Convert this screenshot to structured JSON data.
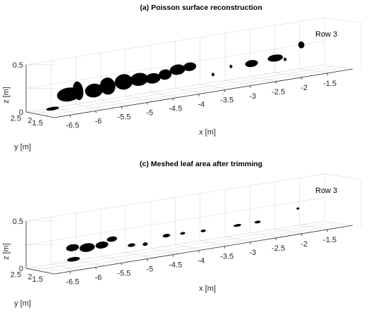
{
  "chart_data": [
    {
      "type": "scatter",
      "title": "(a) Poisson surface reconstruction",
      "annotation": "Row 3",
      "xlabel": "x [m]",
      "ylabel": "y [m]",
      "zlabel": "z [m]",
      "xlim": [
        -6.8,
        -1.0
      ],
      "ylim": [
        1.3,
        2.6
      ],
      "zlim": [
        0,
        0.5
      ],
      "xticks": [
        "-6.5",
        "-6",
        "-5.5",
        "-5",
        "-4.5",
        "-4",
        "-3.5",
        "-3",
        "-2.5",
        "-2",
        "-1.5"
      ],
      "yticks": [
        "1.5",
        "2",
        "2.5"
      ],
      "zticks": [
        "0",
        "0.5"
      ],
      "grid": true,
      "point_color": "#000000",
      "points": [
        {
          "x": -6.6,
          "y": 2.0,
          "z": 0.05,
          "w": 0.25,
          "h": 0.04
        },
        {
          "x": -6.3,
          "y": 2.1,
          "z": 0.18,
          "w": 0.45,
          "h": 0.16
        },
        {
          "x": -6.05,
          "y": 2.1,
          "z": 0.2,
          "w": 0.2,
          "h": 0.22
        },
        {
          "x": -5.8,
          "y": 2.05,
          "z": 0.18,
          "w": 0.35,
          "h": 0.16
        },
        {
          "x": -5.5,
          "y": 2.1,
          "z": 0.2,
          "w": 0.3,
          "h": 0.2
        },
        {
          "x": -5.2,
          "y": 2.1,
          "z": 0.22,
          "w": 0.35,
          "h": 0.18
        },
        {
          "x": -4.9,
          "y": 2.1,
          "z": 0.22,
          "w": 0.35,
          "h": 0.15
        },
        {
          "x": -4.6,
          "y": 2.15,
          "z": 0.2,
          "w": 0.3,
          "h": 0.12
        },
        {
          "x": -4.35,
          "y": 2.15,
          "z": 0.22,
          "w": 0.25,
          "h": 0.12
        },
        {
          "x": -4.1,
          "y": 2.2,
          "z": 0.25,
          "w": 0.3,
          "h": 0.12
        },
        {
          "x": -3.85,
          "y": 2.2,
          "z": 0.26,
          "w": 0.25,
          "h": 0.1
        },
        {
          "x": -3.35,
          "y": 2.2,
          "z": 0.12,
          "w": 0.05,
          "h": 0.04
        },
        {
          "x": -3.0,
          "y": 2.2,
          "z": 0.18,
          "w": 0.05,
          "h": 0.04
        },
        {
          "x": -2.65,
          "y": 2.2,
          "z": 0.18,
          "w": 0.25,
          "h": 0.08
        },
        {
          "x": -2.2,
          "y": 2.2,
          "z": 0.2,
          "w": 0.3,
          "h": 0.08
        },
        {
          "x": -1.95,
          "y": 2.2,
          "z": 0.16,
          "w": 0.06,
          "h": 0.04
        },
        {
          "x": -1.65,
          "y": 2.2,
          "z": 0.3,
          "w": 0.12,
          "h": 0.08
        }
      ]
    },
    {
      "type": "scatter",
      "title": "(c) Meshed leaf area after trimming",
      "annotation": "Row 3",
      "xlabel": "x [m]",
      "ylabel": "y [m]",
      "zlabel": "z [m]",
      "xlim": [
        -6.8,
        -1.0
      ],
      "ylim": [
        1.3,
        2.6
      ],
      "zlim": [
        0,
        0.5
      ],
      "xticks": [
        "-6.5",
        "-6",
        "-5.5",
        "-5",
        "-4.5",
        "-4",
        "-3.5",
        "-3",
        "-2.5",
        "-2",
        "-1.5"
      ],
      "yticks": [
        "1.5",
        "2",
        "2.5"
      ],
      "zticks": [
        "0",
        "0.5"
      ],
      "grid": true,
      "point_color": "#000000",
      "points": [
        {
          "x": -6.3,
          "y": 1.75,
          "z": 0.1,
          "w": 0.25,
          "h": 0.05
        },
        {
          "x": -6.15,
          "y": 2.15,
          "z": 0.2,
          "w": 0.25,
          "h": 0.08
        },
        {
          "x": -5.9,
          "y": 2.1,
          "z": 0.18,
          "w": 0.3,
          "h": 0.1
        },
        {
          "x": -5.6,
          "y": 2.1,
          "z": 0.18,
          "w": 0.25,
          "h": 0.08
        },
        {
          "x": -5.35,
          "y": 2.2,
          "z": 0.22,
          "w": 0.2,
          "h": 0.06
        },
        {
          "x": -5.0,
          "y": 2.1,
          "z": 0.12,
          "w": 0.15,
          "h": 0.04
        },
        {
          "x": -4.7,
          "y": 2.15,
          "z": 0.1,
          "w": 0.1,
          "h": 0.04
        },
        {
          "x": -4.3,
          "y": 2.15,
          "z": 0.16,
          "w": 0.15,
          "h": 0.04
        },
        {
          "x": -3.95,
          "y": 2.2,
          "z": 0.15,
          "w": 0.1,
          "h": 0.03
        },
        {
          "x": -3.55,
          "y": 2.2,
          "z": 0.14,
          "w": 0.1,
          "h": 0.03
        },
        {
          "x": -2.9,
          "y": 2.2,
          "z": 0.14,
          "w": 0.15,
          "h": 0.03
        },
        {
          "x": -2.5,
          "y": 2.2,
          "z": 0.14,
          "w": 0.12,
          "h": 0.03
        },
        {
          "x": -1.7,
          "y": 2.2,
          "z": 0.22,
          "w": 0.05,
          "h": 0.02
        }
      ]
    }
  ]
}
